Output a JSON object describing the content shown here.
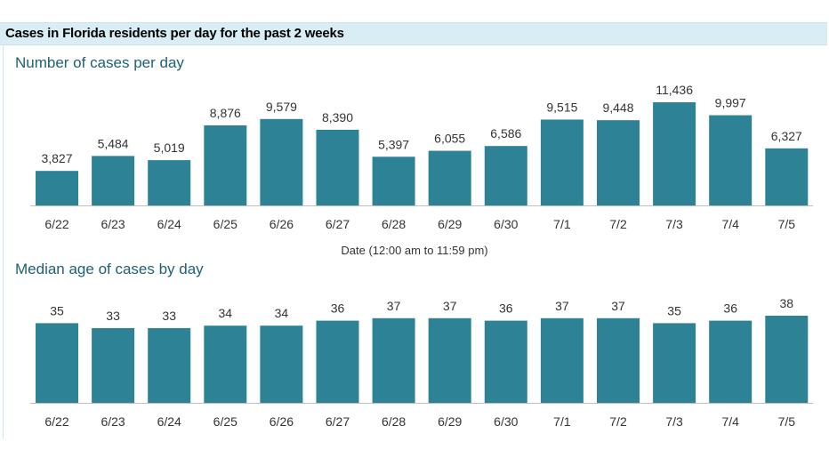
{
  "header": {
    "title": "Cases in Florida residents per day for the past 2 weeks"
  },
  "colors": {
    "bar": "#2e8296",
    "header_bg": "#d9edf4",
    "title_text": "#1f5f73"
  },
  "chart_data": [
    {
      "type": "bar",
      "title": "Number of cases per day",
      "xlabel": "Date (12:00 am to 11:59 pm)",
      "ylabel": "",
      "categories": [
        "6/22",
        "6/23",
        "6/24",
        "6/25",
        "6/26",
        "6/27",
        "6/28",
        "6/29",
        "6/30",
        "7/1",
        "7/2",
        "7/3",
        "7/4",
        "7/5"
      ],
      "values": [
        3827,
        5484,
        5019,
        8876,
        9579,
        8390,
        5397,
        6055,
        6586,
        9515,
        9448,
        11436,
        9997,
        6327
      ],
      "value_labels": [
        "3,827",
        "5,484",
        "5,019",
        "8,876",
        "9,579",
        "8,390",
        "5,397",
        "6,055",
        "6,586",
        "9,515",
        "9,448",
        "11,436",
        "9,997",
        "6,327"
      ],
      "ylim": [
        0,
        12000
      ],
      "grid": false
    },
    {
      "type": "bar",
      "title": "Median age of cases by day",
      "xlabel": "",
      "ylabel": "",
      "categories": [
        "6/22",
        "6/23",
        "6/24",
        "6/25",
        "6/26",
        "6/27",
        "6/28",
        "6/29",
        "6/30",
        "7/1",
        "7/2",
        "7/3",
        "7/4",
        "7/5"
      ],
      "values": [
        35,
        33,
        33,
        34,
        34,
        36,
        37,
        37,
        36,
        37,
        37,
        35,
        36,
        38
      ],
      "value_labels": [
        "35",
        "33",
        "33",
        "34",
        "34",
        "36",
        "37",
        "37",
        "36",
        "37",
        "37",
        "35",
        "36",
        "38"
      ],
      "ylim": [
        0,
        38
      ],
      "grid": false
    }
  ]
}
